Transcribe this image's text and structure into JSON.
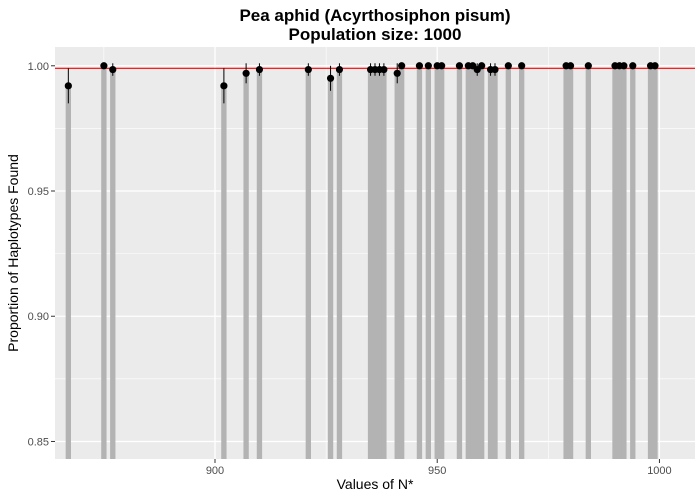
{
  "chart_data": {
    "type": "bar",
    "title": "Pea aphid (Acyrthosiphon pisum)",
    "subtitle": "Population size: 1000",
    "xlabel": "Values of N*",
    "ylabel": "Proportion of Haplotypes Found",
    "xlim": [
      864,
      1008
    ],
    "ylim": [
      0.843,
      1.0075
    ],
    "xticks": [
      900,
      950,
      1000
    ],
    "xtick_labels": [
      "900",
      "950",
      "1000"
    ],
    "yticks": [
      0.85,
      0.9,
      0.95,
      1.0
    ],
    "ytick_labels": [
      "0.85",
      "0.90",
      "0.95",
      "1.00"
    ],
    "grid": true,
    "reference_line": {
      "y": 0.999,
      "color": "#ff0000"
    },
    "colors": {
      "bar": "#b3b3b3",
      "point": "#000000",
      "panel": "#ebebeb",
      "grid": "#ffffff"
    },
    "x": [
      867,
      875,
      877,
      902,
      907,
      910,
      921,
      926,
      928,
      935,
      936,
      937,
      938,
      941,
      942,
      946,
      948,
      950,
      951,
      955,
      957,
      958,
      959,
      960,
      962,
      963,
      966,
      969,
      979,
      980,
      984,
      990,
      991,
      992,
      994,
      998,
      999
    ],
    "values": [
      0.992,
      1.0,
      0.9985,
      0.992,
      0.997,
      0.9985,
      0.9985,
      0.995,
      0.9985,
      0.9985,
      0.9985,
      0.9985,
      0.9985,
      0.997,
      1.0,
      1.0,
      1.0,
      1.0,
      1.0,
      1.0,
      1.0,
      1.0,
      0.9985,
      1.0,
      0.9985,
      0.9985,
      1.0,
      1.0,
      1.0,
      1.0,
      1.0,
      1.0,
      1.0,
      1.0,
      1.0,
      1.0,
      1.0
    ],
    "error_low": [
      0.985,
      1.0,
      0.996,
      0.985,
      0.993,
      0.996,
      0.996,
      0.99,
      0.996,
      0.996,
      0.996,
      0.996,
      0.996,
      0.993,
      1.0,
      1.0,
      1.0,
      1.0,
      1.0,
      1.0,
      1.0,
      1.0,
      0.996,
      1.0,
      0.996,
      0.996,
      1.0,
      1.0,
      1.0,
      1.0,
      1.0,
      1.0,
      1.0,
      1.0,
      1.0,
      1.0,
      1.0
    ],
    "error_high": [
      0.999,
      1.0,
      1.001,
      0.999,
      1.001,
      1.001,
      1.001,
      1.0,
      1.001,
      1.001,
      1.001,
      1.001,
      1.001,
      1.001,
      1.0,
      1.0,
      1.0,
      1.0,
      1.0,
      1.0,
      1.0,
      1.0,
      1.001,
      1.0,
      1.001,
      1.001,
      1.0,
      1.0,
      1.0,
      1.0,
      1.0,
      1.0,
      1.0,
      1.0,
      1.0,
      1.0,
      1.0
    ]
  }
}
